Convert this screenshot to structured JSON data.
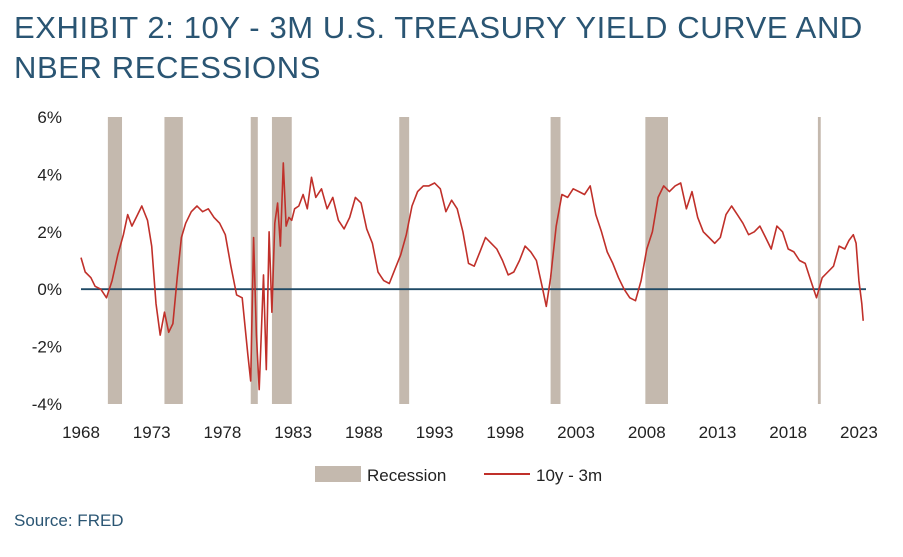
{
  "title": "EXHIBIT 2: 10Y - 3M U.S. TREASURY YIELD CURVE AND NBER RECESSIONS",
  "source": "Source: FRED",
  "colors": {
    "title": "#2a5573",
    "line": "#c0302a",
    "recession": "#c4b9ae",
    "zero_line": "#1f4a66"
  },
  "chart_data": {
    "type": "line",
    "title": "EXHIBIT 2: 10Y - 3M U.S. TREASURY YIELD CURVE AND NBER RECESSIONS",
    "xlabel": "",
    "ylabel": "",
    "xlim": [
      1968,
      2023.5
    ],
    "ylim": [
      -4,
      6
    ],
    "x_ticks": [
      1968,
      1973,
      1978,
      1983,
      1988,
      1993,
      1998,
      2003,
      2008,
      2013,
      2018,
      2023
    ],
    "x_tick_labels": [
      "1968",
      "1973",
      "1978",
      "1983",
      "1988",
      "1993",
      "1998",
      "2003",
      "2008",
      "2013",
      "2018",
      "2023"
    ],
    "y_ticks": [
      -4,
      -2,
      0,
      2,
      4,
      6
    ],
    "y_tick_labels": [
      "-4%",
      "-2%",
      "0%",
      "2%",
      "4%",
      "6%"
    ],
    "legend": [
      {
        "label": "Recession",
        "kind": "area"
      },
      {
        "label": "10y - 3m",
        "kind": "line"
      }
    ],
    "legend_position": "bottom-center",
    "recessions": [
      [
        1969.9,
        1970.9
      ],
      [
        1973.9,
        1975.2
      ],
      [
        1980.0,
        1980.5
      ],
      [
        1981.5,
        1982.9
      ],
      [
        1990.5,
        1991.2
      ],
      [
        2001.2,
        2001.9
      ],
      [
        2007.9,
        2009.5
      ],
      [
        2020.1,
        2020.3
      ]
    ],
    "series": [
      {
        "name": "10y - 3m",
        "x": [
          1968.0,
          1968.3,
          1968.7,
          1969.0,
          1969.4,
          1969.8,
          1970.2,
          1970.6,
          1971.0,
          1971.3,
          1971.6,
          1972.0,
          1972.3,
          1972.7,
          1973.0,
          1973.3,
          1973.6,
          1973.9,
          1974.2,
          1974.5,
          1974.8,
          1975.1,
          1975.4,
          1975.8,
          1976.2,
          1976.6,
          1977.0,
          1977.4,
          1977.8,
          1978.2,
          1978.6,
          1979.0,
          1979.4,
          1979.8,
          1980.0,
          1980.2,
          1980.4,
          1980.6,
          1980.9,
          1981.1,
          1981.3,
          1981.5,
          1981.7,
          1981.9,
          1982.1,
          1982.3,
          1982.5,
          1982.7,
          1982.9,
          1983.1,
          1983.4,
          1983.7,
          1984.0,
          1984.3,
          1984.6,
          1985.0,
          1985.4,
          1985.8,
          1986.2,
          1986.6,
          1987.0,
          1987.4,
          1987.8,
          1988.2,
          1988.6,
          1989.0,
          1989.4,
          1989.8,
          1990.2,
          1990.6,
          1991.0,
          1991.4,
          1991.8,
          1992.2,
          1992.6,
          1993.0,
          1993.4,
          1993.8,
          1994.2,
          1994.6,
          1995.0,
          1995.4,
          1995.8,
          1996.2,
          1996.6,
          1997.0,
          1997.4,
          1997.8,
          1998.2,
          1998.6,
          1999.0,
          1999.4,
          1999.8,
          2000.2,
          2000.6,
          2000.9,
          2001.2,
          2001.6,
          2002.0,
          2002.4,
          2002.8,
          2003.2,
          2003.6,
          2004.0,
          2004.4,
          2004.8,
          2005.2,
          2005.6,
          2006.0,
          2006.4,
          2006.8,
          2007.2,
          2007.6,
          2008.0,
          2008.4,
          2008.8,
          2009.2,
          2009.6,
          2010.0,
          2010.4,
          2010.8,
          2011.2,
          2011.6,
          2012.0,
          2012.4,
          2012.8,
          2013.2,
          2013.6,
          2014.0,
          2014.4,
          2014.8,
          2015.2,
          2015.6,
          2016.0,
          2016.4,
          2016.8,
          2017.2,
          2017.6,
          2018.0,
          2018.4,
          2018.8,
          2019.2,
          2019.6,
          2020.0,
          2020.4,
          2020.8,
          2021.2,
          2021.6,
          2022.0,
          2022.3,
          2022.6,
          2022.8,
          2023.0,
          2023.2,
          2023.3
        ],
        "values": [
          1.1,
          0.6,
          0.4,
          0.1,
          0.0,
          -0.3,
          0.3,
          1.2,
          1.9,
          2.6,
          2.2,
          2.6,
          2.9,
          2.4,
          1.5,
          -0.5,
          -1.6,
          -0.8,
          -1.5,
          -1.2,
          0.4,
          1.8,
          2.3,
          2.7,
          2.9,
          2.7,
          2.8,
          2.5,
          2.3,
          1.9,
          0.8,
          -0.2,
          -0.3,
          -2.3,
          -3.2,
          1.8,
          -1.6,
          -3.5,
          0.5,
          -2.8,
          2.0,
          -0.8,
          2.3,
          3.0,
          1.5,
          4.4,
          2.2,
          2.5,
          2.4,
          2.8,
          2.9,
          3.3,
          2.8,
          3.9,
          3.2,
          3.5,
          2.8,
          3.2,
          2.4,
          2.1,
          2.5,
          3.2,
          3.0,
          2.1,
          1.6,
          0.6,
          0.3,
          0.2,
          0.7,
          1.2,
          1.9,
          2.9,
          3.4,
          3.6,
          3.6,
          3.7,
          3.5,
          2.7,
          3.1,
          2.8,
          2.0,
          0.9,
          0.8,
          1.3,
          1.8,
          1.6,
          1.4,
          1.0,
          0.5,
          0.6,
          1.0,
          1.5,
          1.3,
          1.0,
          0.1,
          -0.6,
          0.4,
          2.2,
          3.3,
          3.2,
          3.5,
          3.4,
          3.3,
          3.6,
          2.6,
          2.0,
          1.3,
          0.9,
          0.4,
          0.0,
          -0.3,
          -0.4,
          0.3,
          1.4,
          2.0,
          3.2,
          3.6,
          3.4,
          3.6,
          3.7,
          2.8,
          3.4,
          2.5,
          2.0,
          1.8,
          1.6,
          1.8,
          2.6,
          2.9,
          2.6,
          2.3,
          1.9,
          2.0,
          2.2,
          1.8,
          1.4,
          2.2,
          2.0,
          1.4,
          1.3,
          1.0,
          0.9,
          0.3,
          -0.3,
          0.4,
          0.6,
          0.8,
          1.5,
          1.4,
          1.7,
          1.9,
          1.6,
          0.3,
          -0.5,
          -1.1
        ]
      }
    ]
  }
}
